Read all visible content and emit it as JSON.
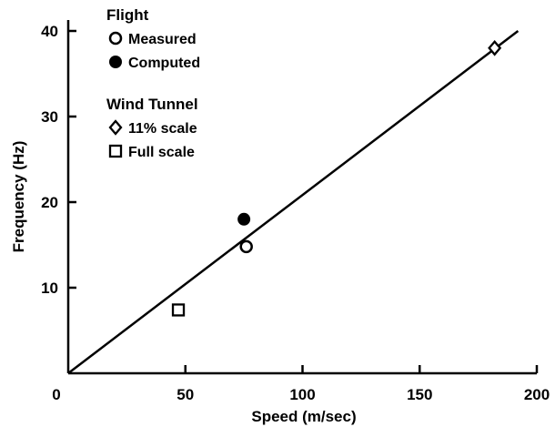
{
  "chart_data": {
    "type": "scatter",
    "title": "",
    "xlabel": "Speed (m/sec)",
    "ylabel": "Frequency (Hz)",
    "xlim": [
      0,
      200
    ],
    "ylim": [
      0,
      40
    ],
    "xticks": [
      0,
      50,
      100,
      150,
      200
    ],
    "yticks": [
      10,
      20,
      30,
      40
    ],
    "grid": false,
    "legend_position": "top-left",
    "legend_groups": [
      {
        "title": "Flight",
        "entries": [
          "Measured",
          "Computed"
        ]
      },
      {
        "title": "Wind Tunnel",
        "entries": [
          "11% scale",
          "Full scale"
        ]
      }
    ],
    "series": [
      {
        "name": "Measured",
        "group": "Flight",
        "marker": "open-circle",
        "points": [
          {
            "x": 76,
            "y": 14.8
          }
        ]
      },
      {
        "name": "Computed",
        "group": "Flight",
        "marker": "filled-circle",
        "points": [
          {
            "x": 75,
            "y": 18
          }
        ]
      },
      {
        "name": "11% scale",
        "group": "Wind Tunnel",
        "marker": "open-diamond",
        "points": [
          {
            "x": 182,
            "y": 38
          }
        ]
      },
      {
        "name": "Full scale",
        "group": "Wind Tunnel",
        "marker": "open-square",
        "points": [
          {
            "x": 47,
            "y": 7.4
          }
        ]
      }
    ],
    "fit_line": {
      "from": {
        "x": 0,
        "y": 0
      },
      "to": {
        "x": 192,
        "y": 40
      }
    }
  }
}
